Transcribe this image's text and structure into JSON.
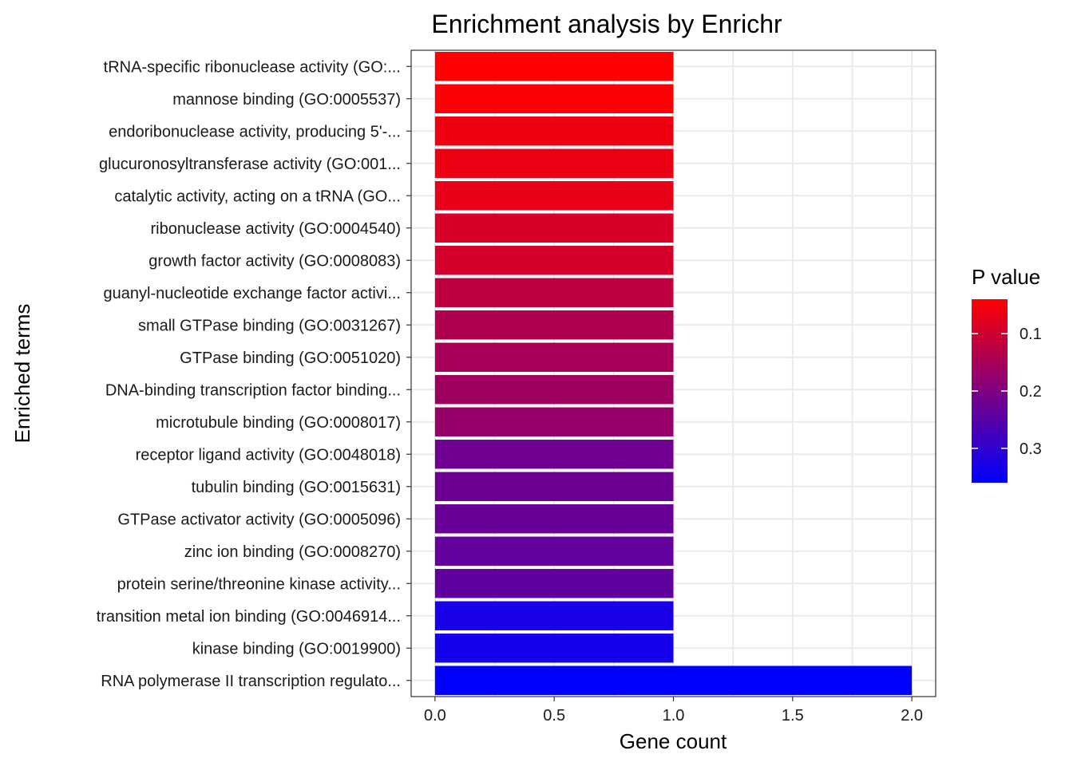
{
  "chart_data": {
    "type": "bar",
    "orientation": "horizontal",
    "title": "Enrichment analysis by Enrichr",
    "xlabel": "Gene count",
    "ylabel": "Enriched terms",
    "xlim": [
      -0.1,
      2.1
    ],
    "xticks": [
      0.0,
      0.5,
      1.0,
      1.5,
      2.0
    ],
    "xtick_labels": [
      "0.0",
      "0.5",
      "1.0",
      "1.5",
      "2.0"
    ],
    "grid": true,
    "categories": [
      "tRNA-specific ribonuclease activity (GO:...",
      "mannose binding (GO:0005537)",
      "endoribonuclease activity, producing 5'-...",
      "glucuronosyltransferase activity (GO:001...",
      "catalytic activity, acting on a tRNA (GO...",
      "ribonuclease activity (GO:0004540)",
      "growth factor activity (GO:0008083)",
      "guanyl-nucleotide exchange factor activi...",
      "small GTPase binding (GO:0031267)",
      "GTPase binding (GO:0051020)",
      "DNA-binding transcription factor binding...",
      "microtubule binding (GO:0008017)",
      "receptor ligand activity (GO:0048018)",
      "tubulin binding (GO:0015631)",
      "GTPase activator activity (GO:0005096)",
      "zinc ion binding (GO:0008270)",
      "protein serine/threonine kinase activity...",
      "transition metal ion binding (GO:0046914...",
      "kinase binding (GO:0019900)",
      "RNA polymerase II transcription regulato..."
    ],
    "values": [
      1,
      1,
      1,
      1,
      1,
      1,
      1,
      1,
      1,
      1,
      1,
      1,
      1,
      1,
      1,
      1,
      1,
      1,
      1,
      2
    ],
    "p_values": [
      0.04,
      0.045,
      0.06,
      0.065,
      0.07,
      0.09,
      0.095,
      0.12,
      0.14,
      0.15,
      0.16,
      0.17,
      0.22,
      0.225,
      0.23,
      0.235,
      0.24,
      0.33,
      0.335,
      0.36
    ],
    "legend": {
      "title": "P value",
      "placement": "right",
      "range": [
        0.04,
        0.36
      ],
      "ticks": [
        0.1,
        0.2,
        0.3
      ],
      "tick_labels": [
        "0.1",
        "0.2",
        "0.3"
      ],
      "color_low": "#ff0000",
      "color_high": "#0000ff"
    }
  }
}
